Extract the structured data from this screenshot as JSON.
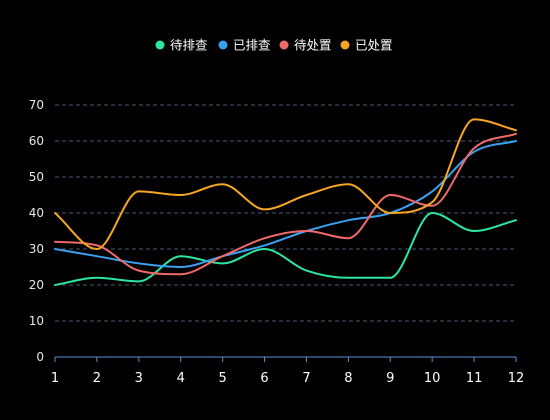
{
  "chart_data": {
    "type": "line",
    "smooth": true,
    "categories": [
      "1",
      "2",
      "3",
      "4",
      "5",
      "6",
      "7",
      "8",
      "9",
      "10",
      "11",
      "12"
    ],
    "ylim": [
      0,
      70
    ],
    "yticks": [
      0,
      10,
      20,
      30,
      40,
      50,
      60,
      70
    ],
    "grid": true,
    "legend_position": "top-center",
    "series": [
      {
        "name": "待排查",
        "color": "#2ee6a3",
        "values": [
          20,
          22,
          21,
          28,
          26,
          30,
          24,
          22,
          22,
          40,
          35,
          38
        ]
      },
      {
        "name": "已排查",
        "color": "#3aa0f0",
        "values": [
          30,
          28,
          26,
          25,
          28,
          31,
          35,
          38,
          40,
          46,
          57,
          60
        ]
      },
      {
        "name": "待处置",
        "color": "#f06a6a",
        "values": [
          32,
          31,
          24,
          23,
          28,
          33,
          35,
          33,
          45,
          42,
          58,
          62
        ]
      },
      {
        "name": "已处置",
        "color": "#f5a623",
        "values": [
          40,
          30,
          46,
          45,
          48,
          41,
          45,
          48,
          40,
          43,
          66,
          63
        ]
      }
    ]
  }
}
